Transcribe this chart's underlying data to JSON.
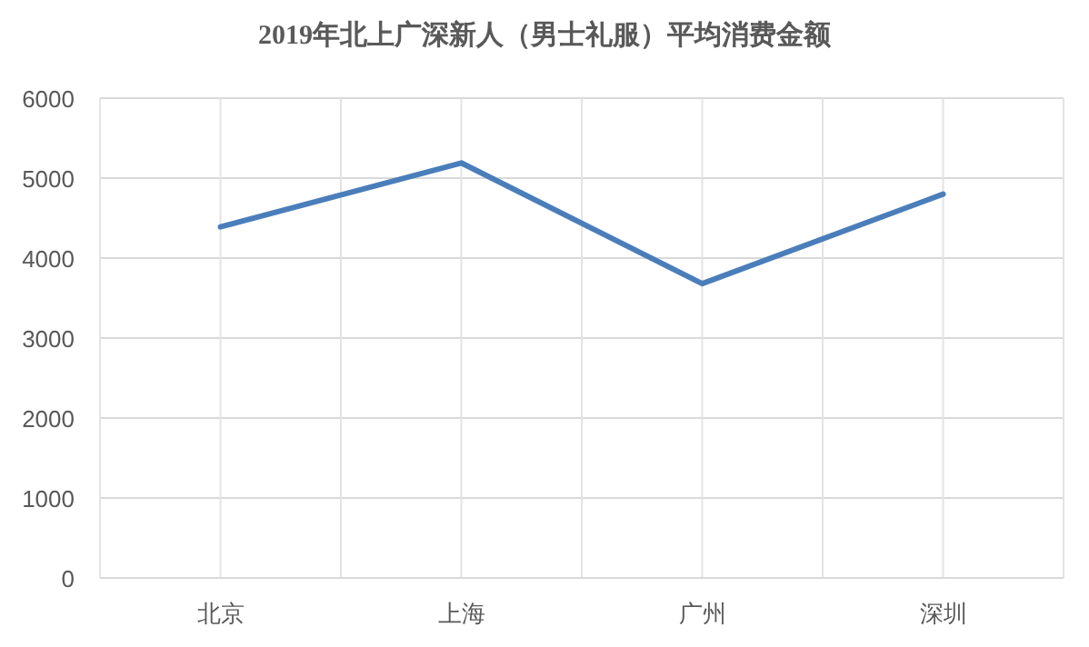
{
  "chart_data": {
    "type": "line",
    "title": "2019年北上广深新人（男士礼服）平均消费金额",
    "categories": [
      "北京",
      "上海",
      "广州",
      "深圳"
    ],
    "series": [
      {
        "color": "#4a7ebb",
        "values": [
          4390,
          5190,
          3680,
          4800
        ]
      }
    ],
    "ylim": [
      0,
      6000
    ],
    "yticks": [
      0,
      1000,
      2000,
      3000,
      4000,
      5000,
      6000
    ],
    "grid": true
  }
}
